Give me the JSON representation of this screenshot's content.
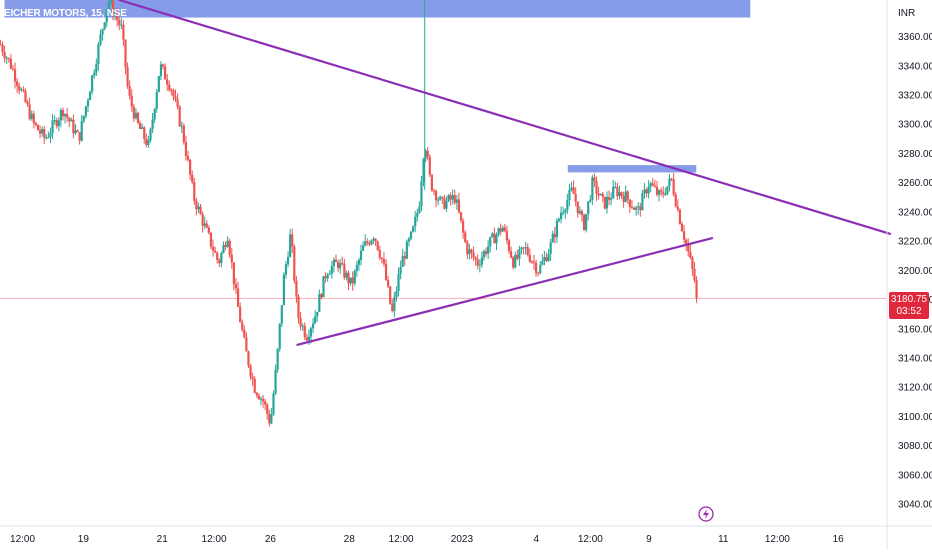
{
  "symbol": {
    "title": "EICHER MOTORS, 15, NSE"
  },
  "currency": "INR",
  "last_price": {
    "value": "3180.75",
    "countdown": "03:52",
    "color": "#e0283c"
  },
  "colors": {
    "up": "#26a69a",
    "down": "#ef5350",
    "trendline": "#8b2fb5",
    "zone": "#6b86e3",
    "grid": "#e6e6e6",
    "bolt": "#9c27b0"
  },
  "icons": {
    "alert": "lightning-bolt-icon"
  },
  "chart_data": {
    "type": "candlestick",
    "y_axis": {
      "unit": "INR",
      "range": [
        3025,
        3385
      ],
      "ticks": [
        3040,
        3060,
        3080,
        3100,
        3120,
        3140,
        3160,
        3180,
        3200,
        3220,
        3240,
        3260,
        3280,
        3300,
        3320,
        3340,
        3360
      ],
      "tick_labels": [
        "3040.00",
        "3060.00",
        "3080.00",
        "3100.00",
        "3120.00",
        "3140.00",
        "3160.00",
        "3180.00",
        "3200.00",
        "3220.00",
        "3240.00",
        "3260.00",
        "3280.00",
        "3300.00",
        "3320.00",
        "3340.00",
        "3360.00"
      ]
    },
    "x_axis": {
      "unit": "session",
      "range": [
        0,
        39.5
      ],
      "ticks": [
        {
          "x": 1,
          "label": "12:00"
        },
        {
          "x": 3.7,
          "label": "19"
        },
        {
          "x": 7.2,
          "label": "21"
        },
        {
          "x": 9.5,
          "label": "12:00"
        },
        {
          "x": 12,
          "label": "26"
        },
        {
          "x": 15.5,
          "label": "28"
        },
        {
          "x": 17.8,
          "label": "12:00"
        },
        {
          "x": 20.5,
          "label": "2023"
        },
        {
          "x": 23.8,
          "label": "4"
        },
        {
          "x": 26.2,
          "label": "12:00"
        },
        {
          "x": 28.8,
          "label": "9"
        },
        {
          "x": 32.1,
          "label": "11"
        },
        {
          "x": 34.5,
          "label": "12:00"
        },
        {
          "x": 37.2,
          "label": "16"
        }
      ]
    },
    "price_path": [
      [
        0,
        3355
      ],
      [
        0.5,
        3340
      ],
      [
        1,
        3320
      ],
      [
        1.5,
        3300
      ],
      [
        2,
        3290
      ],
      [
        2.8,
        3310
      ],
      [
        3.5,
        3290
      ],
      [
        4.2,
        3340
      ],
      [
        4.8,
        3385
      ],
      [
        5.4,
        3365
      ],
      [
        5.7,
        3320
      ],
      [
        6.1,
        3300
      ],
      [
        6.6,
        3285
      ],
      [
        7.1,
        3340
      ],
      [
        7.6,
        3325
      ],
      [
        8.1,
        3295
      ],
      [
        8.6,
        3250
      ],
      [
        9.2,
        3225
      ],
      [
        9.7,
        3205
      ],
      [
        10.1,
        3225
      ],
      [
        10.5,
        3180
      ],
      [
        10.9,
        3145
      ],
      [
        11.3,
        3120
      ],
      [
        11.7,
        3110
      ],
      [
        12.0,
        3095
      ],
      [
        12.3,
        3140
      ],
      [
        12.6,
        3195
      ],
      [
        12.9,
        3225
      ],
      [
        13.2,
        3170
      ],
      [
        13.6,
        3155
      ],
      [
        14.0,
        3170
      ],
      [
        14.5,
        3200
      ],
      [
        15.0,
        3205
      ],
      [
        15.6,
        3190
      ],
      [
        16.1,
        3215
      ],
      [
        16.6,
        3225
      ],
      [
        17.0,
        3205
      ],
      [
        17.4,
        3170
      ],
      [
        17.8,
        3205
      ],
      [
        18.3,
        3225
      ],
      [
        18.6,
        3245
      ],
      [
        18.85,
        3290
      ],
      [
        19.1,
        3260
      ],
      [
        19.6,
        3245
      ],
      [
        20.2,
        3250
      ],
      [
        20.7,
        3215
      ],
      [
        21.2,
        3205
      ],
      [
        21.8,
        3220
      ],
      [
        22.3,
        3230
      ],
      [
        22.8,
        3205
      ],
      [
        23.3,
        3215
      ],
      [
        23.9,
        3200
      ],
      [
        24.4,
        3215
      ],
      [
        24.9,
        3240
      ],
      [
        25.4,
        3255
      ],
      [
        25.9,
        3230
      ],
      [
        26.3,
        3260
      ],
      [
        26.8,
        3245
      ],
      [
        27.3,
        3255
      ],
      [
        27.8,
        3250
      ],
      [
        28.3,
        3240
      ],
      [
        28.8,
        3260
      ],
      [
        29.3,
        3250
      ],
      [
        29.8,
        3262
      ],
      [
        30.1,
        3240
      ],
      [
        30.5,
        3215
      ],
      [
        30.8,
        3195
      ],
      [
        31.0,
        3181
      ]
    ],
    "wick_spikes": [
      {
        "x": 18.85,
        "low": 3255,
        "high": 3385
      }
    ],
    "trendlines": [
      {
        "from": [
          5.3,
          3385
        ],
        "to": [
          39.5,
          3225
        ]
      },
      {
        "from": [
          13.2,
          3149
        ],
        "to": [
          31.6,
          3222
        ]
      }
    ],
    "zones": [
      {
        "x0": 0.2,
        "x1": 33.3,
        "y0": 3373,
        "y1": 3387
      },
      {
        "x0": 25.2,
        "x1": 30.9,
        "y0": 3267,
        "y1": 3272
      }
    ],
    "last_price_line": 3180.75
  }
}
